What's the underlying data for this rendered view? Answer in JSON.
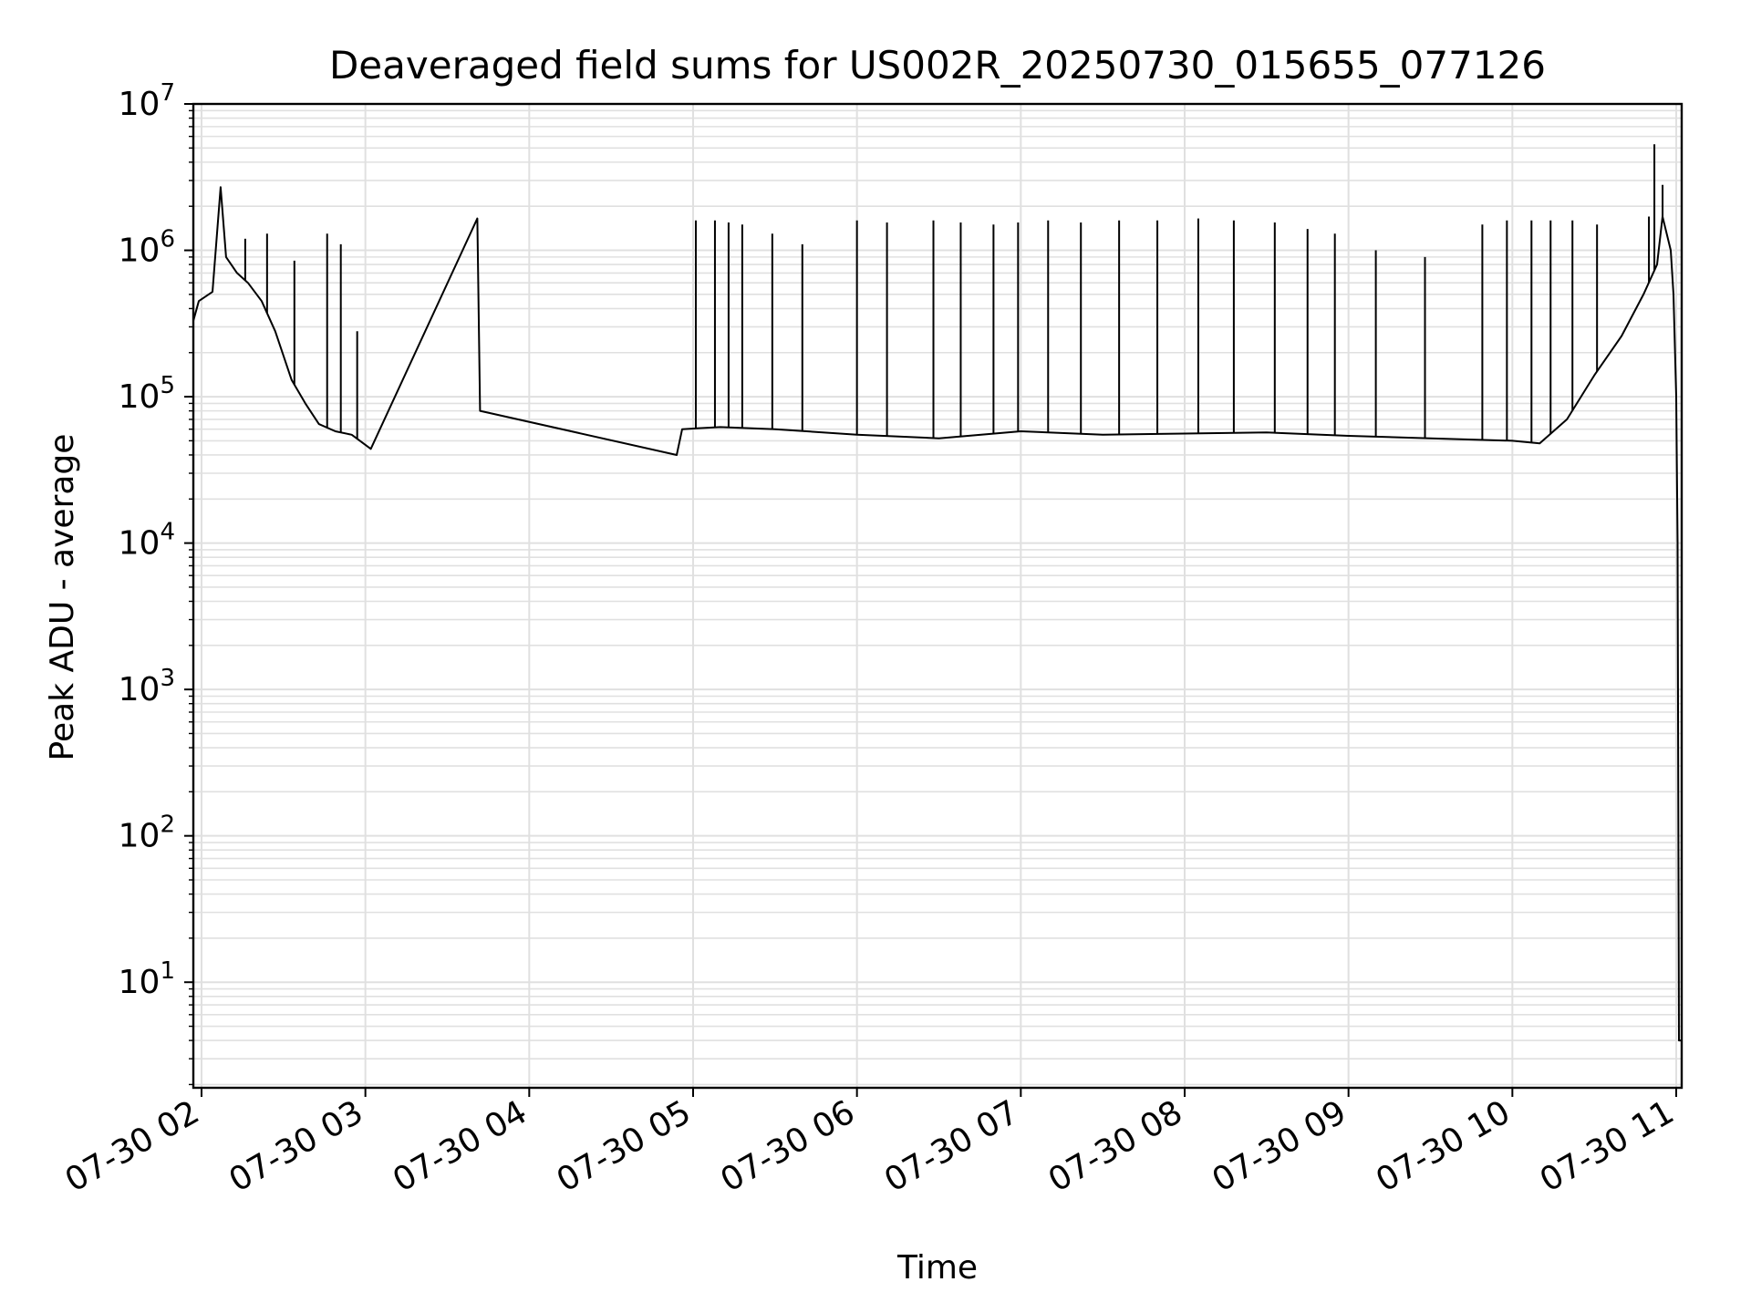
{
  "chart_data": {
    "type": "line",
    "title": "Deaveraged field sums for US002R_20250730_015655_077126",
    "xlabel": "Time",
    "ylabel": "Peak ADU - average",
    "yscale": "log",
    "ylim": [
      1.9,
      10000000
    ],
    "xlim": [
      "2025-07-30 01:57",
      "2025-07-30 11:02"
    ],
    "grid": true,
    "line_color": "#000000",
    "grid_color": "#e0e0e0",
    "x_ticks": [
      {
        "label": "07-30 02",
        "value": "2025-07-30 02:00"
      },
      {
        "label": "07-30 03",
        "value": "2025-07-30 03:00"
      },
      {
        "label": "07-30 04",
        "value": "2025-07-30 04:00"
      },
      {
        "label": "07-30 05",
        "value": "2025-07-30 05:00"
      },
      {
        "label": "07-30 06",
        "value": "2025-07-30 06:00"
      },
      {
        "label": "07-30 07",
        "value": "2025-07-30 07:00"
      },
      {
        "label": "07-30 08",
        "value": "2025-07-30 08:00"
      },
      {
        "label": "07-30 09",
        "value": "2025-07-30 09:00"
      },
      {
        "label": "07-30 10",
        "value": "2025-07-30 10:00"
      },
      {
        "label": "07-30 11",
        "value": "2025-07-30 11:00"
      }
    ],
    "y_ticks": [
      {
        "base": "10",
        "exp": "1",
        "value": 10
      },
      {
        "base": "10",
        "exp": "2",
        "value": 100
      },
      {
        "base": "10",
        "exp": "3",
        "value": 1000
      },
      {
        "base": "10",
        "exp": "4",
        "value": 10000
      },
      {
        "base": "10",
        "exp": "5",
        "value": 100000
      },
      {
        "base": "10",
        "exp": "6",
        "value": 1000000
      },
      {
        "base": "10",
        "exp": "7",
        "value": 10000000
      }
    ],
    "series": [
      {
        "points": [
          [
            "2025-07-30 01:57",
            330000
          ],
          [
            "2025-07-30 01:59",
            450000
          ],
          [
            "2025-07-30 02:04",
            520000
          ],
          [
            "2025-07-30 02:07",
            2700000
          ],
          [
            "2025-07-30 02:09",
            900000
          ],
          [
            "2025-07-30 02:13",
            700000
          ],
          [
            "2025-07-30 02:17",
            600000
          ],
          [
            "2025-07-30 02:22",
            450000
          ],
          [
            "2025-07-30 02:27",
            280000
          ],
          [
            "2025-07-30 02:33",
            130000
          ],
          [
            "2025-07-30 02:38",
            90000
          ],
          [
            "2025-07-30 02:43",
            65000
          ],
          [
            "2025-07-30 02:49",
            58000
          ],
          [
            "2025-07-30 02:55",
            55000
          ],
          [
            "2025-07-30 03:02",
            44000
          ],
          [
            "2025-07-30 03:41",
            1650000
          ],
          [
            "2025-07-30 03:42",
            80000
          ],
          [
            "2025-07-30 04:54",
            40000
          ],
          [
            "2025-07-30 04:56",
            60000
          ],
          [
            "2025-07-30 05:10",
            62000
          ],
          [
            "2025-07-30 05:30",
            60000
          ],
          [
            "2025-07-30 06:00",
            55000
          ],
          [
            "2025-07-30 06:30",
            52000
          ],
          [
            "2025-07-30 07:00",
            58000
          ],
          [
            "2025-07-30 07:30",
            55000
          ],
          [
            "2025-07-30 08:00",
            56000
          ],
          [
            "2025-07-30 08:30",
            57000
          ],
          [
            "2025-07-30 09:00",
            54000
          ],
          [
            "2025-07-30 09:30",
            52000
          ],
          [
            "2025-07-30 10:00",
            50000
          ],
          [
            "2025-07-30 10:10",
            48000
          ],
          [
            "2025-07-30 10:20",
            70000
          ],
          [
            "2025-07-30 10:30",
            140000
          ],
          [
            "2025-07-30 10:40",
            260000
          ],
          [
            "2025-07-30 10:48",
            500000
          ],
          [
            "2025-07-30 10:53",
            800000
          ],
          [
            "2025-07-30 10:55",
            1700000
          ],
          [
            "2025-07-30 10:58",
            1000000
          ],
          [
            "2025-07-30 10:59",
            500000
          ],
          [
            "2025-07-30 11:00",
            100000
          ],
          [
            "2025-07-30 11:00:30",
            10000
          ],
          [
            "2025-07-30 11:01",
            4
          ],
          [
            "2025-07-30 11:02",
            4
          ]
        ]
      }
    ],
    "spikes": [
      {
        "t": "2025-07-30 02:07",
        "v": 2700000
      },
      {
        "t": "2025-07-30 02:16",
        "v": 1200000
      },
      {
        "t": "2025-07-30 02:24",
        "v": 1300000
      },
      {
        "t": "2025-07-30 02:34",
        "v": 850000
      },
      {
        "t": "2025-07-30 02:46",
        "v": 1300000
      },
      {
        "t": "2025-07-30 02:51",
        "v": 1100000
      },
      {
        "t": "2025-07-30 02:57",
        "v": 280000
      },
      {
        "t": "2025-07-30 05:01",
        "v": 1600000
      },
      {
        "t": "2025-07-30 05:08",
        "v": 1600000
      },
      {
        "t": "2025-07-30 05:13",
        "v": 1550000
      },
      {
        "t": "2025-07-30 05:18",
        "v": 1500000
      },
      {
        "t": "2025-07-30 05:29",
        "v": 1300000
      },
      {
        "t": "2025-07-30 05:40",
        "v": 1100000
      },
      {
        "t": "2025-07-30 06:00",
        "v": 1600000
      },
      {
        "t": "2025-07-30 06:11",
        "v": 1550000
      },
      {
        "t": "2025-07-30 06:28",
        "v": 1600000
      },
      {
        "t": "2025-07-30 06:38",
        "v": 1550000
      },
      {
        "t": "2025-07-30 06:50",
        "v": 1500000
      },
      {
        "t": "2025-07-30 06:59",
        "v": 1550000
      },
      {
        "t": "2025-07-30 07:10",
        "v": 1600000
      },
      {
        "t": "2025-07-30 07:22",
        "v": 1550000
      },
      {
        "t": "2025-07-30 07:36",
        "v": 1600000
      },
      {
        "t": "2025-07-30 07:50",
        "v": 1600000
      },
      {
        "t": "2025-07-30 08:05",
        "v": 1650000
      },
      {
        "t": "2025-07-30 08:18",
        "v": 1600000
      },
      {
        "t": "2025-07-30 08:33",
        "v": 1550000
      },
      {
        "t": "2025-07-30 08:45",
        "v": 1400000
      },
      {
        "t": "2025-07-30 08:55",
        "v": 1300000
      },
      {
        "t": "2025-07-30 09:10",
        "v": 1000000
      },
      {
        "t": "2025-07-30 09:28",
        "v": 900000
      },
      {
        "t": "2025-07-30 09:49",
        "v": 1500000
      },
      {
        "t": "2025-07-30 09:58",
        "v": 1600000
      },
      {
        "t": "2025-07-30 10:07",
        "v": 1600000
      },
      {
        "t": "2025-07-30 10:14",
        "v": 1600000
      },
      {
        "t": "2025-07-30 10:22",
        "v": 1600000
      },
      {
        "t": "2025-07-30 10:31",
        "v": 1500000
      },
      {
        "t": "2025-07-30 10:50",
        "v": 1700000
      },
      {
        "t": "2025-07-30 10:52",
        "v": 5300000
      },
      {
        "t": "2025-07-30 10:55",
        "v": 2800000
      }
    ]
  }
}
